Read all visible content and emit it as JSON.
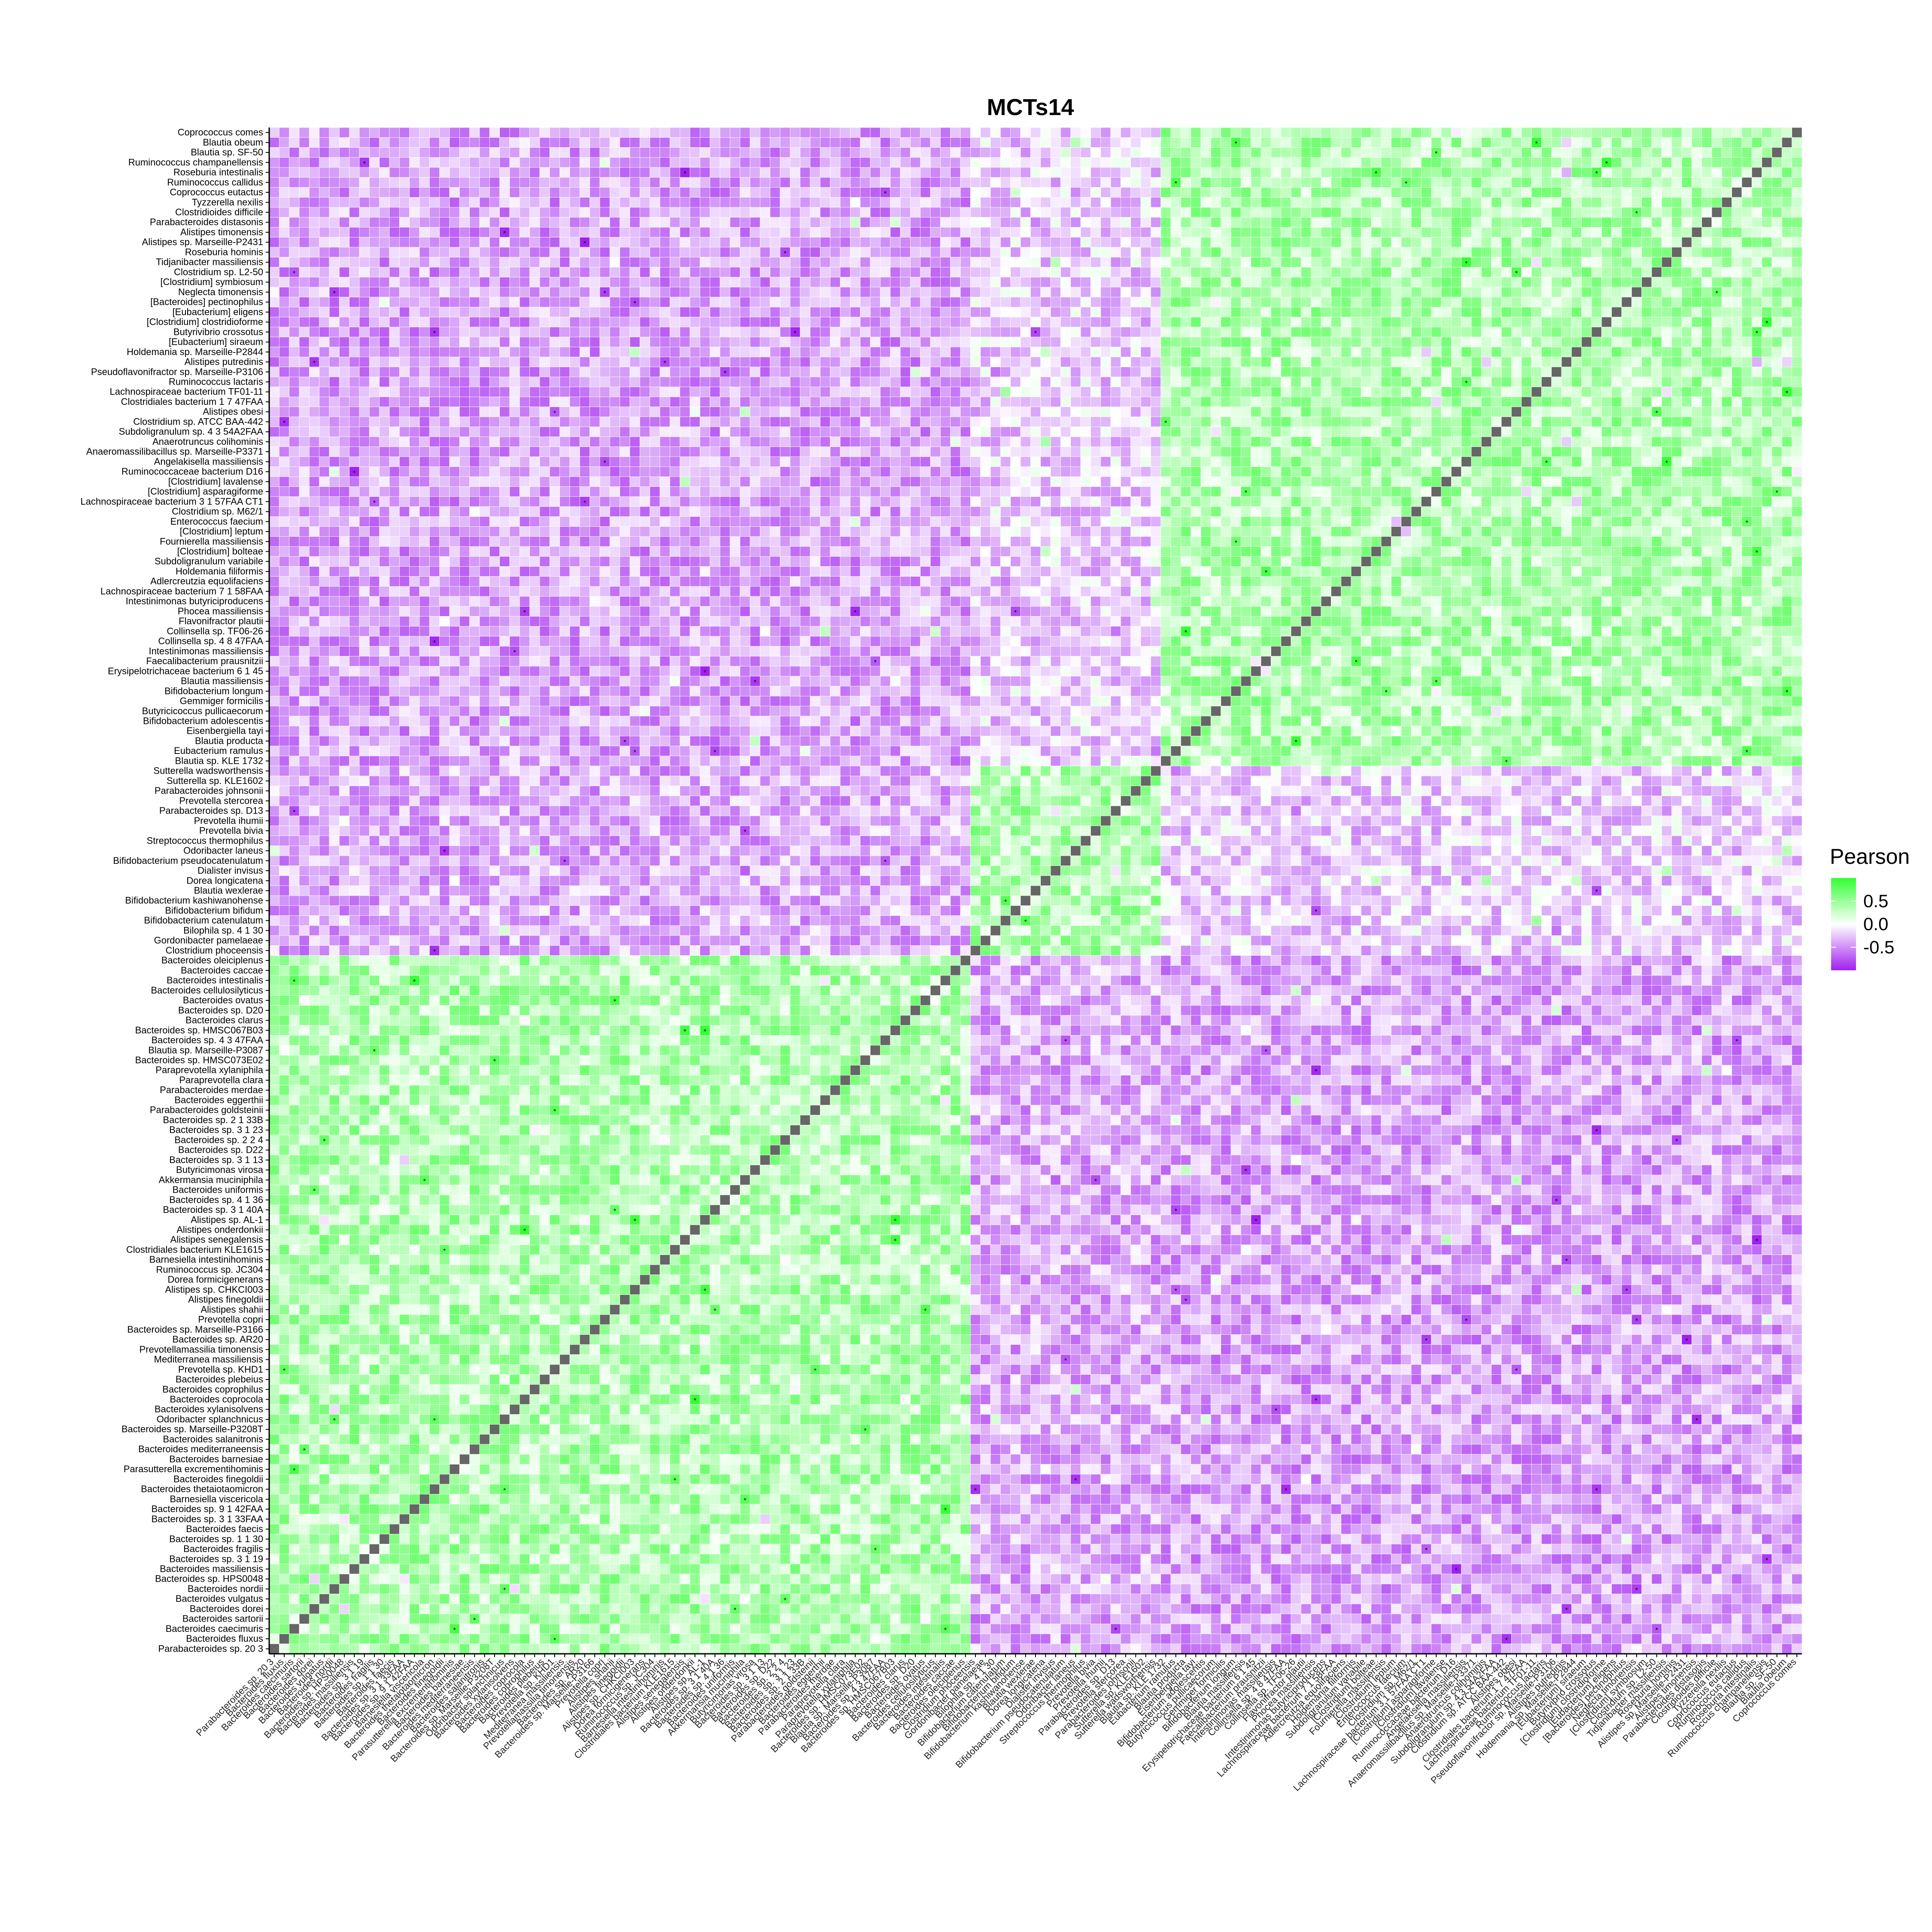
{
  "chart_data": {
    "type": "heatmap",
    "title": "MCTs14",
    "legend": {
      "title": "Pearson",
      "ticks": [
        0.5,
        0.0,
        -0.5
      ],
      "tick_labels": [
        "0.5",
        "0.0",
        "-0.5"
      ],
      "range": [
        -1,
        1
      ],
      "colors": {
        "low": "#a020f0",
        "mid": "#ffffff",
        "high": "#33ff33"
      },
      "placement": "right"
    },
    "diagonal_color": "#666666",
    "row_labels_top_to_bottom": [
      "Coprococcus comes",
      "Blautia obeum",
      "Blautia sp. SF-50",
      "Ruminococcus champanellensis",
      "Roseburia intestinalis",
      "Ruminococcus callidus",
      "Coprococcus eutactus",
      "Tyzzerella nexilis",
      "Clostridioides difficile",
      "Parabacteroides distasonis",
      "Alistipes timonensis",
      "Alistipes sp. Marseille-P2431",
      "Roseburia hominis",
      "Tidjanibacter massiliensis",
      "Clostridium sp. L2-50",
      "[Clostridium] symbiosum",
      "Neglecta timonensis",
      "[Bacteroides] pectinophilus",
      "[Eubacterium] eligens",
      "[Clostridium] clostridioforme",
      "Butyrivibrio crossotus",
      "[Eubacterium] siraeum",
      "Holdemania sp. Marseille-P2844",
      "Alistipes putredinis",
      "Pseudoflavonifractor sp. Marseille-P3106",
      "Ruminococcus lactaris",
      "Lachnospiraceae bacterium TF01-11",
      "Clostridiales bacterium 1 7 47FAA",
      "Alistipes obesi",
      "Clostridium sp. ATCC BAA-442",
      "Subdoligranulum sp. 4 3 54A2FAA",
      "Anaerotruncus colihominis",
      "Anaeromassilibacillus sp. Marseille-P3371",
      "Angelakisella massiliensis",
      "Ruminococcaceae bacterium D16",
      "[Clostridium] lavalense",
      "[Clostridium] asparagiforme",
      "Lachnospiraceae bacterium 3 1 57FAA CT1",
      "Clostridium sp. M62/1",
      "Enterococcus faecium",
      "[Clostridium] leptum",
      "Fournierella massiliensis",
      "[Clostridium] bolteae",
      "Subdoligranulum variabile",
      "Holdemania filiformis",
      "Adlercreutzia equolifaciens",
      "Lachnospiraceae bacterium 7 1 58FAA",
      "Intestinimonas butyriciproducens",
      "Phocea massiliensis",
      "Flavonifractor plautii",
      "Collinsella sp. TF06-26",
      "Collinsella sp. 4 8 47FAA",
      "Intestinimonas massiliensis",
      "Faecalibacterium prausnitzii",
      "Erysipelotrichaceae bacterium 6 1 45",
      "Blautia massiliensis",
      "Bifidobacterium longum",
      "Gemmiger formicilis",
      "Butyricicoccus pullicaecorum",
      "Bifidobacterium adolescentis",
      "Eisenbergiella tayi",
      "Blautia producta",
      "Eubacterium ramulus",
      "Blautia sp. KLE 1732",
      "Sutterella wadsworthensis",
      "Sutterella sp. KLE1602",
      "Parabacteroides johnsonii",
      "Prevotella stercorea",
      "Parabacteroides sp. D13",
      "Prevotella ihumii",
      "Prevotella bivia",
      "Streptococcus thermophilus",
      "Odoribacter laneus",
      "Bifidobacterium pseudocatenulatum",
      "Dialister invisus",
      "Dorea longicatena",
      "Blautia wexlerae",
      "Bifidobacterium kashiwanohense",
      "Bifidobacterium bifidum",
      "Bifidobacterium catenulatum",
      "Bilophila sp. 4 1 30",
      "Gordonibacter pamelaeae",
      "Clostridium phoceensis",
      "Bacteroides oleiciplenus",
      "Bacteroides caccae",
      "Bacteroides intestinalis",
      "Bacteroides cellulosilyticus",
      "Bacteroides ovatus",
      "Bacteroides sp. D20",
      "Bacteroides clarus",
      "Bacteroides sp. HMSC067B03",
      "Bacteroides sp. 4 3 47FAA",
      "Blautia sp. Marseille-P3087",
      "Bacteroides sp. HMSC073E02",
      "Paraprevotella xylaniphila",
      "Paraprevotella clara",
      "Parabacteroides merdae",
      "Bacteroides eggerthii",
      "Parabacteroides goldsteinii",
      "Bacteroides sp. 2 1 33B",
      "Bacteroides sp. 3 1 23",
      "Bacteroides sp. 2 2 4",
      "Bacteroides sp. D22",
      "Bacteroides sp. 3 1 13",
      "Butyricimonas virosa",
      "Akkermansia muciniphila",
      "Bacteroides uniformis",
      "Bacteroides sp. 4 1 36",
      "Bacteroides sp. 3 1 40A",
      "Alistipes sp. AL-1",
      "Alistipes onderdonkii",
      "Alistipes senegalensis",
      "Clostridiales bacterium KLE1615",
      "Barnesiella intestinihominis",
      "Ruminococcus sp. JC304",
      "Dorea formicigenerans",
      "Alistipes sp. CHKCI003",
      "Alistipes finegoldii",
      "Alistipes shahii",
      "Prevotella copri",
      "Bacteroides sp. Marseille-P3166",
      "Bacteroides sp. AR20",
      "Prevotellamassilia timonensis",
      "Mediterranea massiliensis",
      "Prevotella sp. KHD1",
      "Bacteroides plebeius",
      "Bacteroides coprophilus",
      "Bacteroides coprocola",
      "Bacteroides xylanisolvens",
      "Odoribacter splanchnicus",
      "Bacteroides sp. Marseille-P3208T",
      "Bacteroides salanitronis",
      "Bacteroides mediterraneensis",
      "Bacteroides barnesiae",
      "Parasutterella excrementihominis",
      "Bacteroides finegoldii",
      "Bacteroides thetaiotaomicron",
      "Barnesiella viscericola",
      "Bacteroides sp. 9 1 42FAA",
      "Bacteroides sp. 3 1 33FAA",
      "Bacteroides faecis",
      "Bacteroides sp. 1 1 30",
      "Bacteroides fragilis",
      "Bacteroides sp. 3 1 19",
      "Bacteroides massiliensis",
      "Bacteroides sp. HPS0048",
      "Bacteroides nordii",
      "Bacteroides vulgatus",
      "Bacteroides dorei",
      "Bacteroides sartorii",
      "Bacteroides caecimuris",
      "Bacteroides fluxus",
      "Parabacteroides sp. 20 3"
    ],
    "x_axis": "same taxa as rows, in reverse order (left: Parabacteroides sp. 20 3, right: Coprococcus comes)",
    "significance_marks": "*",
    "block_structure": [
      {
        "rows": [
          0,
          63
        ],
        "cols": [
          0,
          63
        ],
        "level": "positive"
      },
      {
        "rows": [
          64,
          82
        ],
        "cols": [
          64,
          82
        ],
        "level": "positive"
      },
      {
        "rows": [
          83,
          152
        ],
        "cols": [
          83,
          152
        ],
        "level": "positive"
      },
      {
        "rows": [
          0,
          63
        ],
        "cols": [
          83,
          152
        ],
        "level": "negative"
      },
      {
        "rows": [
          64,
          82
        ],
        "cols": [
          83,
          152
        ],
        "level": "negative"
      },
      {
        "rows": [
          0,
          63
        ],
        "cols": [
          64,
          82
        ],
        "level": "weak negative"
      }
    ]
  }
}
